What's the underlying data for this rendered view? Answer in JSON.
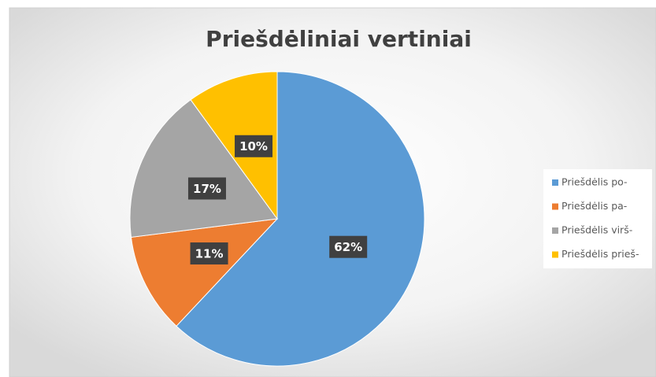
{
  "chart_data": {
    "type": "pie",
    "title": "Priešdėliniai vertiniai",
    "categories": [
      "Priešdėlis po-",
      "Priešdėlis pa-",
      "Priešdėlis virš-",
      "Priešdėlis prieš-"
    ],
    "values": [
      62,
      11,
      17,
      10
    ],
    "value_labels": [
      "62%",
      "11%",
      "17%",
      "10%"
    ],
    "colors": [
      "#5b9bd5",
      "#ed7d31",
      "#a5a5a5",
      "#ffc000"
    ],
    "legend": "right"
  }
}
